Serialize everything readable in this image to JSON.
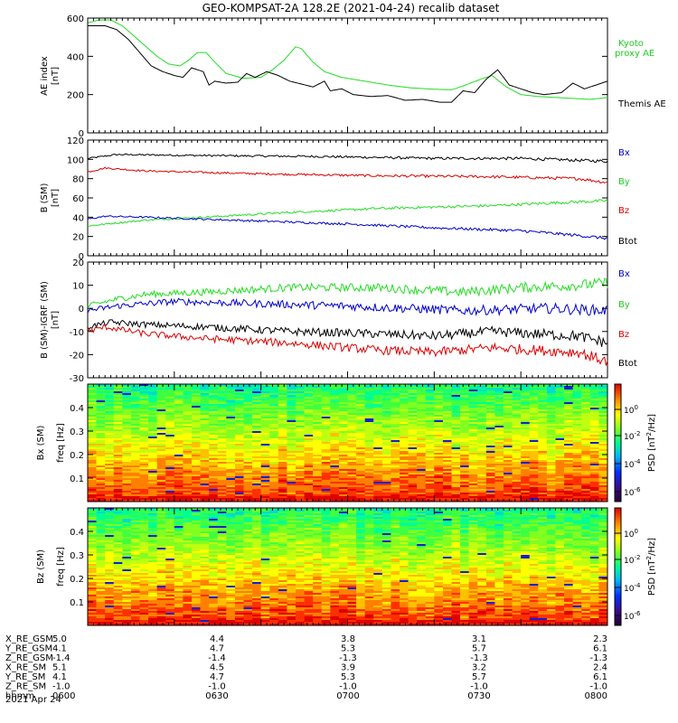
{
  "title": "GEO-KOMPSAT-2A 128.2E (2021-04-24) recalib dataset",
  "colors": {
    "black": "#000000",
    "red": "#dd0000",
    "green": "#22dd22",
    "blue": "#0000cc",
    "kyoto": "#22cc22"
  },
  "chart_data": [
    {
      "type": "line",
      "panel": "ae",
      "ylabel": "AE index [nT]",
      "ylim": [
        0,
        600
      ],
      "yticks": [
        "0",
        "200",
        "400",
        "600"
      ],
      "x": [
        "0600",
        "0630",
        "0700",
        "0730",
        "0800"
      ],
      "series": [
        {
          "name": "Kyoto proxy AE",
          "color": "#22dd22",
          "points": [
            [
              0,
              575
            ],
            [
              4,
              590
            ],
            [
              8,
              590
            ],
            [
              12,
              560
            ],
            [
              18,
              480
            ],
            [
              24,
              400
            ],
            [
              28,
              360
            ],
            [
              32,
              350
            ],
            [
              35,
              380
            ],
            [
              38,
              420
            ],
            [
              41,
              420
            ],
            [
              44,
              370
            ],
            [
              48,
              310
            ],
            [
              54,
              285
            ],
            [
              60,
              290
            ],
            [
              64,
              330
            ],
            [
              68,
              380
            ],
            [
              72,
              450
            ],
            [
              74,
              440
            ],
            [
              78,
              370
            ],
            [
              82,
              320
            ],
            [
              88,
              290
            ],
            [
              96,
              270
            ],
            [
              104,
              250
            ],
            [
              112,
              235
            ],
            [
              120,
              228
            ],
            [
              126,
              225
            ],
            [
              130,
              245
            ],
            [
              136,
              280
            ],
            [
              140,
              300
            ],
            [
              145,
              240
            ],
            [
              150,
              200
            ],
            [
              156,
              190
            ],
            [
              162,
              185
            ],
            [
              168,
              180
            ],
            [
              174,
              175
            ],
            [
              180,
              185
            ]
          ]
        },
        {
          "name": "Themis AE",
          "color": "#000000",
          "points": [
            [
              0,
              560
            ],
            [
              6,
              560
            ],
            [
              10,
              540
            ],
            [
              14,
              490
            ],
            [
              18,
              420
            ],
            [
              22,
              350
            ],
            [
              26,
              320
            ],
            [
              30,
              300
            ],
            [
              33,
              290
            ],
            [
              36,
              340
            ],
            [
              40,
              320
            ],
            [
              42,
              250
            ],
            [
              44,
              270
            ],
            [
              48,
              260
            ],
            [
              52,
              265
            ],
            [
              55,
              310
            ],
            [
              58,
              290
            ],
            [
              62,
              320
            ],
            [
              66,
              300
            ],
            [
              70,
              270
            ],
            [
              74,
              255
            ],
            [
              78,
              240
            ],
            [
              82,
              270
            ],
            [
              84,
              220
            ],
            [
              88,
              230
            ],
            [
              92,
              200
            ],
            [
              98,
              190
            ],
            [
              104,
              195
            ],
            [
              110,
              170
            ],
            [
              116,
              175
            ],
            [
              122,
              160
            ],
            [
              126,
              160
            ],
            [
              130,
              220
            ],
            [
              134,
              210
            ],
            [
              138,
              280
            ],
            [
              142,
              330
            ],
            [
              146,
              250
            ],
            [
              150,
              230
            ],
            [
              154,
              210
            ],
            [
              158,
              200
            ],
            [
              164,
              210
            ],
            [
              168,
              260
            ],
            [
              172,
              230
            ],
            [
              176,
              250
            ],
            [
              180,
              270
            ]
          ]
        }
      ]
    },
    {
      "type": "line",
      "panel": "bsm",
      "ylabel": "B (SM) [nT]",
      "ylim": [
        0,
        120
      ],
      "yticks": [
        "0",
        "20",
        "40",
        "60",
        "80",
        "100",
        "120"
      ],
      "series": [
        {
          "name": "Btot",
          "color": "#000000",
          "points": [
            [
              0,
              101
            ],
            [
              10,
              105
            ],
            [
              40,
              104
            ],
            [
              80,
              103
            ],
            [
              120,
              101
            ],
            [
              150,
              101
            ],
            [
              180,
              98
            ]
          ]
        },
        {
          "name": "By",
          "color": "#dd0000",
          "points": [
            [
              0,
              87
            ],
            [
              6,
              91
            ],
            [
              20,
              88
            ],
            [
              60,
              85
            ],
            [
              100,
              83
            ],
            [
              140,
              82
            ],
            [
              170,
              80
            ],
            [
              180,
              76
            ]
          ]
        },
        {
          "name": "Bz",
          "color": "#22dd22",
          "points": [
            [
              0,
              31
            ],
            [
              20,
              37
            ],
            [
              40,
              40
            ],
            [
              70,
              45
            ],
            [
              100,
              49
            ],
            [
              140,
              52
            ],
            [
              170,
              56
            ],
            [
              180,
              57
            ]
          ]
        },
        {
          "name": "Bx",
          "color": "#0000cc",
          "points": [
            [
              0,
              38
            ],
            [
              6,
              41
            ],
            [
              20,
              40
            ],
            [
              40,
              38
            ],
            [
              60,
              36
            ],
            [
              90,
              33
            ],
            [
              120,
              29
            ],
            [
              150,
              26
            ],
            [
              170,
              21
            ],
            [
              180,
              18
            ]
          ]
        }
      ]
    },
    {
      "type": "line",
      "panel": "bigrf",
      "ylabel": "B (SM)-IGRF (SM) [nT]",
      "ylim": [
        -30,
        20
      ],
      "yticks": [
        "-30",
        "-20",
        "-10",
        "0",
        "10",
        "20"
      ],
      "series": [
        {
          "name": "By",
          "color": "#22dd22",
          "points": [
            [
              0,
              1
            ],
            [
              10,
              4
            ],
            [
              20,
              6
            ],
            [
              40,
              7
            ],
            [
              70,
              9
            ],
            [
              100,
              9
            ],
            [
              130,
              7
            ],
            [
              150,
              9
            ],
            [
              170,
              10
            ],
            [
              180,
              11
            ]
          ]
        },
        {
          "name": "Bx",
          "color": "#0000cc",
          "points": [
            [
              0,
              -1
            ],
            [
              10,
              1
            ],
            [
              30,
              3
            ],
            [
              60,
              2
            ],
            [
              90,
              1
            ],
            [
              110,
              0
            ],
            [
              130,
              -1
            ],
            [
              160,
              0
            ],
            [
              180,
              -1
            ]
          ]
        },
        {
          "name": "Btot",
          "color": "#000000",
          "points": [
            [
              0,
              -8
            ],
            [
              8,
              -6
            ],
            [
              20,
              -7
            ],
            [
              40,
              -8
            ],
            [
              70,
              -10
            ],
            [
              100,
              -11
            ],
            [
              120,
              -12
            ],
            [
              140,
              -10
            ],
            [
              170,
              -12
            ],
            [
              180,
              -15
            ]
          ]
        },
        {
          "name": "Bz",
          "color": "#dd0000",
          "points": [
            [
              0,
              -10
            ],
            [
              6,
              -8
            ],
            [
              20,
              -11
            ],
            [
              40,
              -13
            ],
            [
              70,
              -15
            ],
            [
              100,
              -18
            ],
            [
              120,
              -19
            ],
            [
              140,
              -17
            ],
            [
              170,
              -19
            ],
            [
              180,
              -23
            ]
          ]
        }
      ]
    },
    {
      "type": "heatmap",
      "panel": "specbx",
      "ylabel": "Bx (SM) freq [Hz]",
      "yticks": [
        "0.1",
        "0.2",
        "0.3",
        "0.4"
      ],
      "ylim": [
        0,
        0.5
      ],
      "colorbar_label": "PSD [nT^2/Hz]",
      "colorbar_ticks": [
        "10^0",
        "10^-2",
        "10^-4",
        "10^-6"
      ]
    },
    {
      "type": "heatmap",
      "panel": "specbz",
      "ylabel": "Bz (SM) freq [Hz]",
      "yticks": [
        "0.1",
        "0.2",
        "0.3",
        "0.4"
      ],
      "ylim": [
        0,
        0.5
      ],
      "colorbar_label": "PSD [nT^2/Hz]",
      "colorbar_ticks": [
        "10^0",
        "10^-2",
        "10^-4",
        "10^-6"
      ]
    }
  ],
  "legend_ae": {
    "kyoto_line1": "Kyoto",
    "kyoto_line2": "proxy AE",
    "themis": "Themis AE"
  },
  "legend_b": [
    "Bx",
    "By",
    "Bz",
    "Btot"
  ],
  "labels": {
    "ae_y1": "AE index",
    "ae_y2": "[nT]",
    "bsm_y1": "B (SM)",
    "bsm_y2": "[nT]",
    "bigrf_y1": "B (SM)-IGRF (SM)",
    "bigrf_y2": "[nT]",
    "specbx_y1": "Bx (SM)",
    "specbx_y2": "freq [Hz]",
    "specbz_y1": "Bz (SM)",
    "specbz_y2": "freq [Hz]",
    "psd": "PSD [nT",
    "psd_sup": "2",
    "psd_end": "/Hz]",
    "cb_base": "10"
  },
  "ephemeris": {
    "rows": [
      "X_RE_GSM",
      "Y_RE_GSM",
      "Z_RE_GSM",
      "X_RE_SM",
      "Y_RE_SM",
      "Z_RE_SM",
      "hhmm"
    ],
    "values": [
      [
        "5.0",
        "4.4",
        "3.8",
        "3.1",
        "2.3"
      ],
      [
        "4.1",
        "4.7",
        "5.3",
        "5.7",
        "6.1"
      ],
      [
        "-1.4",
        "-1.4",
        "-1.3",
        "-1.3",
        "-1.3"
      ],
      [
        "5.1",
        "4.5",
        "3.9",
        "3.2",
        "2.4"
      ],
      [
        "4.1",
        "4.7",
        "5.3",
        "5.7",
        "6.1"
      ],
      [
        "-1.0",
        "-1.0",
        "-1.0",
        "-1.0",
        "-1.0"
      ],
      [
        "0600",
        "0630",
        "0700",
        "0730",
        "0800"
      ]
    ],
    "date": "2021 Apr 24"
  }
}
